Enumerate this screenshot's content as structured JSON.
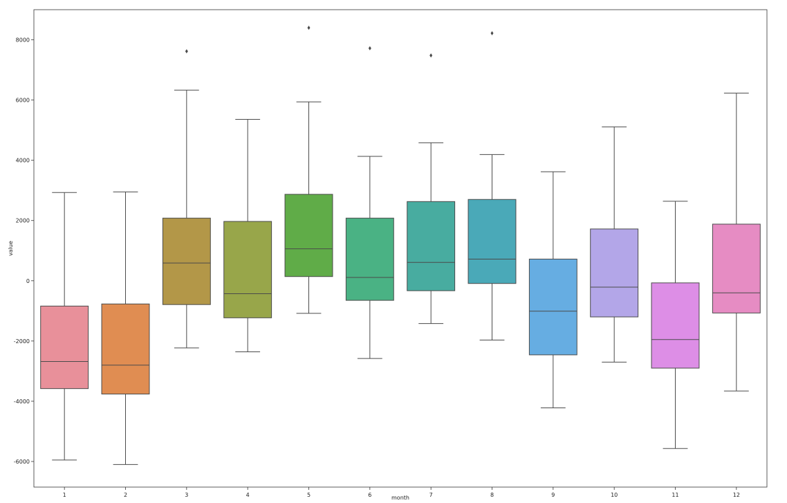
{
  "chart_data": {
    "type": "box",
    "xlabel": "month",
    "ylabel": "value",
    "ylim": [
      -6850,
      9000
    ],
    "yticks": [
      -6000,
      -4000,
      -2000,
      0,
      2000,
      4000,
      6000,
      8000
    ],
    "categories": [
      "1",
      "2",
      "3",
      "4",
      "5",
      "6",
      "7",
      "8",
      "9",
      "10",
      "11",
      "12"
    ],
    "boxes": [
      {
        "category": "1",
        "color": "#e8909a",
        "whisker_low": -5950,
        "q1": -3580,
        "median": -2680,
        "q3": -840,
        "whisker_high": 2930,
        "outliers": []
      },
      {
        "category": "2",
        "color": "#e08d52",
        "whisker_low": -6100,
        "q1": -3760,
        "median": -2800,
        "q3": -770,
        "whisker_high": 2950,
        "outliers": []
      },
      {
        "category": "3",
        "color": "#b39748",
        "whisker_low": -2230,
        "q1": -790,
        "median": 590,
        "q3": 2080,
        "whisker_high": 6330,
        "outliers": [
          7620
        ]
      },
      {
        "category": "4",
        "color": "#98a64a",
        "whisker_low": -2360,
        "q1": -1230,
        "median": -430,
        "q3": 1970,
        "whisker_high": 5360,
        "outliers": []
      },
      {
        "category": "5",
        "color": "#60ac48",
        "whisker_low": -1080,
        "q1": 140,
        "median": 1060,
        "q3": 2870,
        "whisker_high": 5940,
        "outliers": [
          8400
        ]
      },
      {
        "category": "6",
        "color": "#4ab284",
        "whisker_low": -2580,
        "q1": -650,
        "median": 110,
        "q3": 2080,
        "whisker_high": 4130,
        "outliers": [
          7720
        ]
      },
      {
        "category": "7",
        "color": "#48aca0",
        "whisker_low": -1420,
        "q1": -330,
        "median": 610,
        "q3": 2630,
        "whisker_high": 4580,
        "outliers": [
          7480
        ]
      },
      {
        "category": "8",
        "color": "#4aa9b8",
        "whisker_low": -1970,
        "q1": -90,
        "median": 720,
        "q3": 2700,
        "whisker_high": 4190,
        "outliers": [
          8220
        ]
      },
      {
        "category": "9",
        "color": "#66ade2",
        "whisker_low": -4220,
        "q1": -2460,
        "median": -1010,
        "q3": 720,
        "whisker_high": 3620,
        "outliers": []
      },
      {
        "category": "10",
        "color": "#b3a6e8",
        "whisker_low": -2700,
        "q1": -1200,
        "median": -210,
        "q3": 1720,
        "whisker_high": 5110,
        "outliers": []
      },
      {
        "category": "11",
        "color": "#dd8ee6",
        "whisker_low": -5570,
        "q1": -2900,
        "median": -1950,
        "q3": -70,
        "whisker_high": 2640,
        "outliers": []
      },
      {
        "category": "12",
        "color": "#e68cc3",
        "whisker_low": -3660,
        "q1": -1070,
        "median": -400,
        "q3": 1880,
        "whisker_high": 6230,
        "outliers": []
      }
    ]
  }
}
